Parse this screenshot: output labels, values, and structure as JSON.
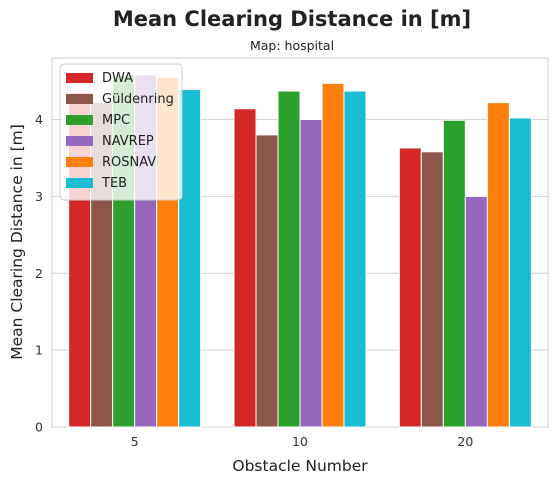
{
  "chart_data": {
    "type": "bar",
    "title": "Mean Clearing Distance in [m]",
    "subtitle": "Map: hospital",
    "xlabel": "Obstacle Number",
    "ylabel": "Mean Clearing Distance in [m]",
    "categories": [
      "5",
      "10",
      "20"
    ],
    "ylim": [
      0,
      4.8
    ],
    "yticks": [
      0,
      1,
      2,
      3,
      4
    ],
    "grid": true,
    "legend_position": "top-left",
    "series": [
      {
        "name": "DWA",
        "color": "#d62728",
        "values": [
          4.35,
          4.14,
          3.63
        ]
      },
      {
        "name": "Güldenring",
        "color": "#8c564b",
        "values": [
          4.22,
          3.8,
          3.58
        ]
      },
      {
        "name": "MPC",
        "color": "#2ca02c",
        "values": [
          4.58,
          4.37,
          3.99
        ]
      },
      {
        "name": "NAVREP",
        "color": "#9467bd",
        "values": [
          4.58,
          4.0,
          3.0
        ]
      },
      {
        "name": "ROSNAV",
        "color": "#ff7f0e",
        "values": [
          4.55,
          4.47,
          4.22
        ]
      },
      {
        "name": "TEB",
        "color": "#17becf",
        "values": [
          4.39,
          4.37,
          4.02
        ]
      }
    ]
  }
}
